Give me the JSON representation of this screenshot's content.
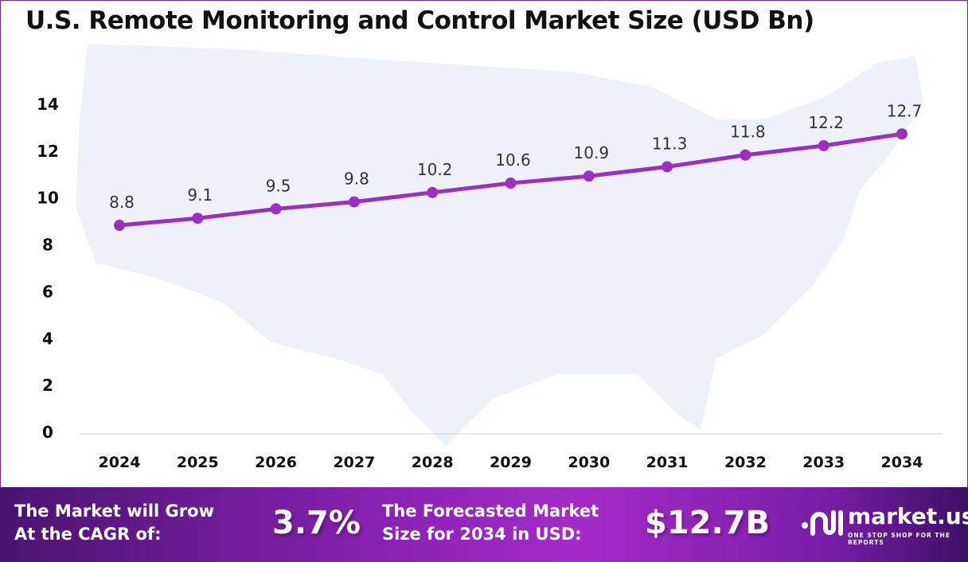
{
  "chart_data": {
    "type": "line",
    "title": "U.S. Remote Monitoring and Control Market Size (USD Bn)",
    "categories": [
      "2024",
      "2025",
      "2026",
      "2027",
      "2028",
      "2029",
      "2030",
      "2031",
      "2032",
      "2033",
      "2034"
    ],
    "values": [
      8.8,
      9.1,
      9.5,
      9.8,
      10.2,
      10.6,
      10.9,
      11.3,
      11.8,
      12.2,
      12.7
    ],
    "data_labels": [
      "8.8",
      "9.1",
      "9.5",
      "9.8",
      "10.2",
      "10.6",
      "10.9",
      "11.3",
      "11.8",
      "12.2",
      "12.7"
    ],
    "yticks": [
      "0",
      "2",
      "4",
      "6",
      "8",
      "10",
      "12",
      "14"
    ],
    "ylim": [
      0,
      14
    ],
    "xlabel": "",
    "ylabel": "",
    "grid": false,
    "line_color": "#9b2fc2",
    "background": "US map silhouette"
  },
  "footer": {
    "cagr_label_line1": "The Market will Grow",
    "cagr_label_line2": "At the CAGR of:",
    "cagr_value": "3.7%",
    "forecast_label_line1": "The Forecasted Market",
    "forecast_label_line2": "Size for 2034 in USD:",
    "forecast_value": "$12.7B"
  },
  "logo": {
    "name": "market.us",
    "tagline": "ONE STOP SHOP FOR THE REPORTS"
  }
}
